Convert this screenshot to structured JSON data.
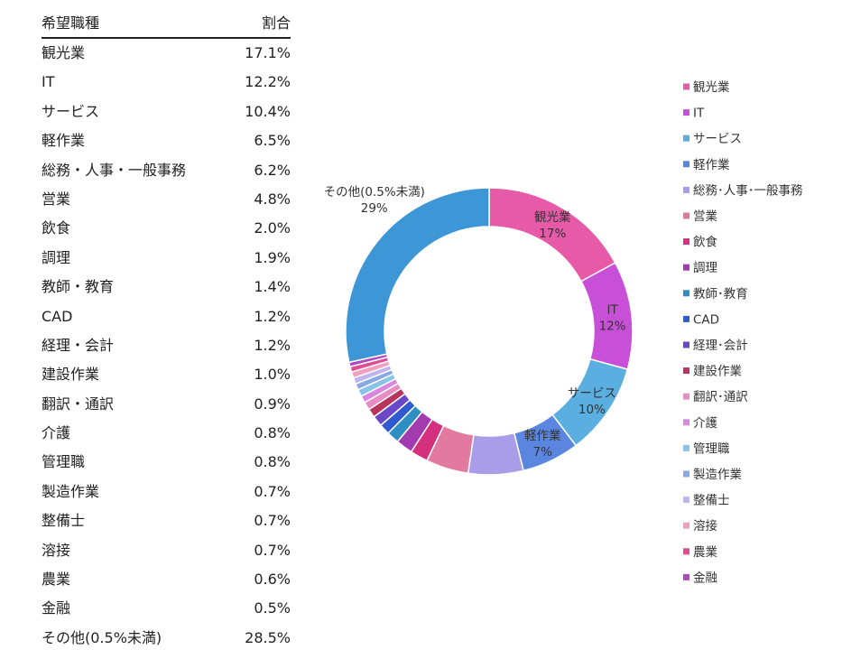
{
  "table": {
    "headers": [
      "希望職種",
      "割合"
    ],
    "rows": [
      [
        "観光業",
        "17.1%"
      ],
      [
        "IT",
        "12.2%"
      ],
      [
        "サービス",
        "10.4%"
      ],
      [
        "軽作業",
        "6.5%"
      ],
      [
        "総務・人事・一般事務",
        "6.2%"
      ],
      [
        "営業",
        "4.8%"
      ],
      [
        "飲食",
        "2.0%"
      ],
      [
        "調理",
        "1.9%"
      ],
      [
        "教師・教育",
        "1.4%"
      ],
      [
        "CAD",
        "1.2%"
      ],
      [
        "経理・会計",
        "1.2%"
      ],
      [
        "建設作業",
        "1.0%"
      ],
      [
        "翻訳・通訳",
        "0.9%"
      ],
      [
        "介護",
        "0.8%"
      ],
      [
        "管理職",
        "0.8%"
      ],
      [
        "製造作業",
        "0.7%"
      ],
      [
        "整備士",
        "0.7%"
      ],
      [
        "溶接",
        "0.7%"
      ],
      [
        "農業",
        "0.6%"
      ],
      [
        "金融",
        "0.5%"
      ],
      [
        "その他(0.5%未満)",
        "28.5%"
      ]
    ]
  },
  "chart_data": {
    "type": "pie",
    "donut": true,
    "categories": [
      "観光業",
      "IT",
      "サービス",
      "軽作業",
      "総務・人事・一般事務",
      "営業",
      "飲食",
      "調理",
      "教師・教育",
      "CAD",
      "経理・会計",
      "建設作業",
      "翻訳・通訳",
      "介護",
      "管理職",
      "製造作業",
      "整備士",
      "溶接",
      "農業",
      "金融",
      "その他(0.5%未満)"
    ],
    "values": [
      17.1,
      12.2,
      10.4,
      6.5,
      6.2,
      4.8,
      2.0,
      1.9,
      1.4,
      1.2,
      1.2,
      1.0,
      0.9,
      0.8,
      0.8,
      0.7,
      0.7,
      0.7,
      0.6,
      0.5,
      28.5
    ],
    "legend": [
      "観光業",
      "IT",
      "サービス",
      "軽作業",
      "総務･人事･一般事務",
      "営業",
      "飲食",
      "調理",
      "教師･教育",
      "CAD",
      "経理･会計",
      "建設作業",
      "翻訳･通訳",
      "介護",
      "管理職",
      "製造作業",
      "整備士",
      "溶接",
      "農業",
      "金融"
    ],
    "legend_position": "right",
    "slice_labels": [
      {
        "index": 0,
        "name": "観光業",
        "pct": "17%"
      },
      {
        "index": 1,
        "name": "IT",
        "pct": "12%"
      },
      {
        "index": 2,
        "name": "サービス",
        "pct": "10%"
      },
      {
        "index": 3,
        "name": "軽作業",
        "pct": "7%"
      },
      {
        "index": 20,
        "name": "その他(0.5%未満)",
        "pct": "29%"
      }
    ],
    "colors": [
      "#e65aa8",
      "#c84fd8",
      "#5aaee0",
      "#5b86e0",
      "#a99ce8",
      "#e27aa0",
      "#d4307e",
      "#a33bb0",
      "#2f8fc4",
      "#2f5ad0",
      "#6a48c8",
      "#b8345a",
      "#e88cc4",
      "#d888e0",
      "#88c4e8",
      "#88a8e4",
      "#c0b4ec",
      "#f0a0bc",
      "#e04c92",
      "#b048c0",
      "#3d96d6"
    ]
  }
}
